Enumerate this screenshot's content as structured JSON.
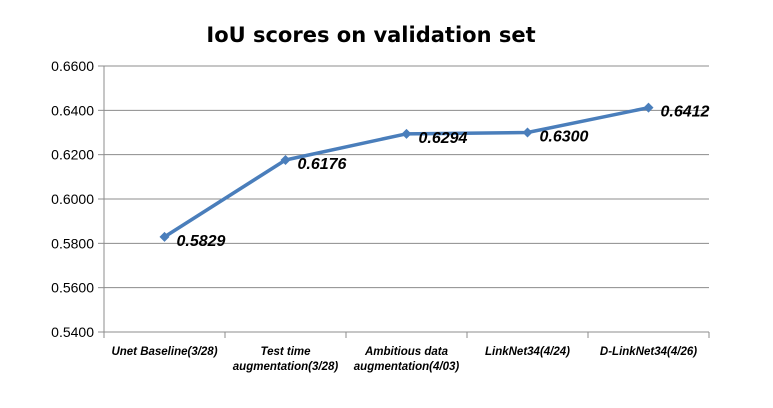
{
  "chart_data": {
    "type": "line",
    "title": "IoU scores on validation set",
    "xlabel": "",
    "ylabel": "",
    "categories": [
      [
        "Unet Baseline(3/28)"
      ],
      [
        "Test time",
        "augmentation(3/28)"
      ],
      [
        "Ambitious data",
        "augmentation(4/03)"
      ],
      [
        "LinkNet34(4/24)"
      ],
      [
        "D-LinkNet34(4/26)"
      ]
    ],
    "series": [
      {
        "values": [
          0.5829,
          0.6176,
          0.6294,
          0.63,
          0.6412
        ],
        "data_labels": [
          "0.5829",
          "0.6176",
          "0.6294",
          "0.6300",
          "0.6412"
        ],
        "color": "#4a7ebb"
      }
    ],
    "yticks": [
      "0.5400",
      "0.5600",
      "0.5800",
      "0.6000",
      "0.6200",
      "0.6400",
      "0.6600"
    ],
    "ylim": [
      0.54,
      0.66
    ],
    "grid": true,
    "legend": "none"
  }
}
